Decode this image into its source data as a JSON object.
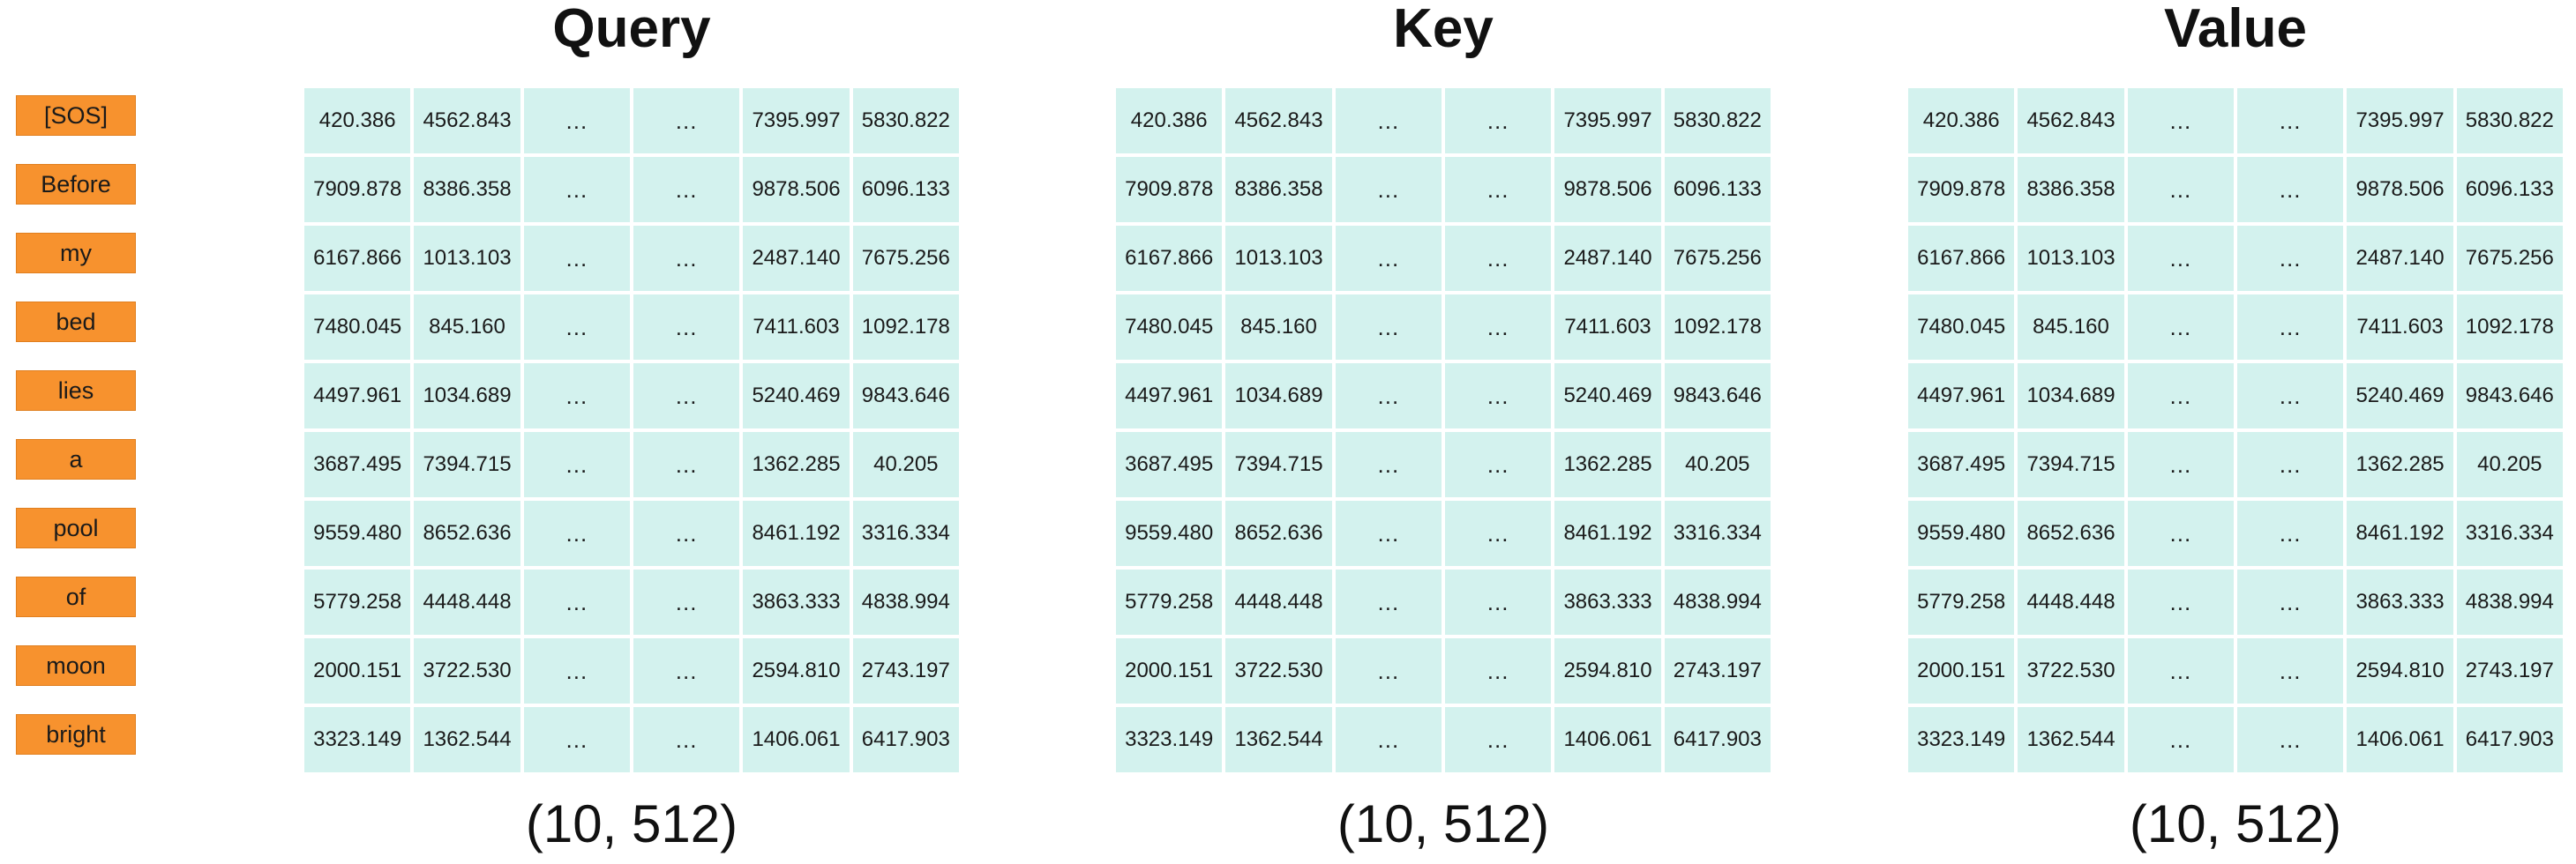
{
  "tokens": [
    "[SOS]",
    "Before",
    "my",
    "bed",
    "lies",
    "a",
    "pool",
    "of",
    "moon",
    "bright"
  ],
  "panels": [
    {
      "title": "Query",
      "shape": "(10, 512)"
    },
    {
      "title": "Key",
      "shape": "(10, 512)"
    },
    {
      "title": "Value",
      "shape": "(10, 512)"
    }
  ],
  "matrix_rows": [
    [
      "420.386",
      "4562.843",
      "…",
      "…",
      "7395.997",
      "5830.822"
    ],
    [
      "7909.878",
      "8386.358",
      "…",
      "…",
      "9878.506",
      "6096.133"
    ],
    [
      "6167.866",
      "1013.103",
      "…",
      "…",
      "2487.140",
      "7675.256"
    ],
    [
      "7480.045",
      "845.160",
      "…",
      "…",
      "7411.603",
      "1092.178"
    ],
    [
      "4497.961",
      "1034.689",
      "…",
      "…",
      "5240.469",
      "9843.646"
    ],
    [
      "3687.495",
      "7394.715",
      "…",
      "…",
      "1362.285",
      "40.205"
    ],
    [
      "9559.480",
      "8652.636",
      "…",
      "…",
      "8461.192",
      "3316.334"
    ],
    [
      "5779.258",
      "4448.448",
      "…",
      "…",
      "3863.333",
      "4838.994"
    ],
    [
      "2000.151",
      "3722.530",
      "…",
      "…",
      "2594.810",
      "2743.197"
    ],
    [
      "3323.149",
      "1362.544",
      "…",
      "…",
      "1406.061",
      "6417.903"
    ]
  ],
  "colors": {
    "token_fill": "#f7922e",
    "cell_fill": "#d3f2ee"
  }
}
